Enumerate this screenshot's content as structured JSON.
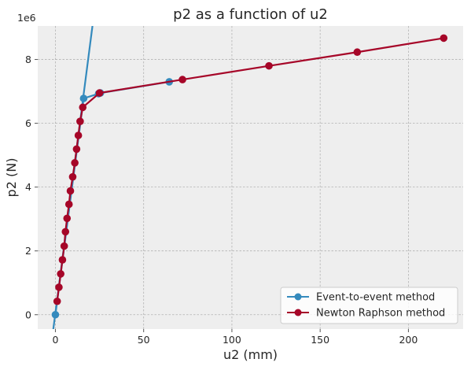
{
  "chart_data": {
    "type": "line",
    "title": "p2 as a function of u2",
    "xlabel": "u2 (mm)",
    "ylabel": "p2 (N)",
    "y_offset_label": "1e6",
    "xlim": [
      -10,
      231
    ],
    "ylim": [
      -0.45,
      9.05
    ],
    "y_scale_factor": 1000000,
    "x_ticks": [
      0,
      50,
      100,
      150,
      200
    ],
    "x_tick_labels": [
      "0",
      "50",
      "100",
      "150",
      "200"
    ],
    "y_ticks": [
      0,
      2,
      4,
      6,
      8
    ],
    "y_tick_labels": [
      "0",
      "2",
      "4",
      "6",
      "8"
    ],
    "grid": true,
    "legend_position": "lower-right",
    "series": [
      {
        "name": "Event-to-event method",
        "color": "#348ABD",
        "markers": true,
        "x": [
          0,
          16,
          24.5,
          25.5,
          64.5
        ],
        "y": [
          0,
          6.78,
          6.93,
          6.95,
          7.3
        ],
        "extended_line": {
          "x": [
            -2,
            21
          ],
          "y": [
            -0.8,
            9.05
          ]
        }
      },
      {
        "name": "Newton Raphson method",
        "color": "#A60628",
        "markers": true,
        "x": [
          1,
          2,
          3,
          4,
          5,
          5.7,
          6.6,
          7.7,
          8.5,
          9.8,
          11,
          12,
          13,
          14,
          15.5,
          25,
          72,
          121,
          171,
          220
        ],
        "y": [
          0.42,
          0.86,
          1.28,
          1.72,
          2.15,
          2.6,
          3.02,
          3.46,
          3.88,
          4.32,
          4.76,
          5.19,
          5.62,
          6.06,
          6.5,
          6.95,
          7.37,
          7.8,
          8.23,
          8.67
        ]
      }
    ]
  }
}
